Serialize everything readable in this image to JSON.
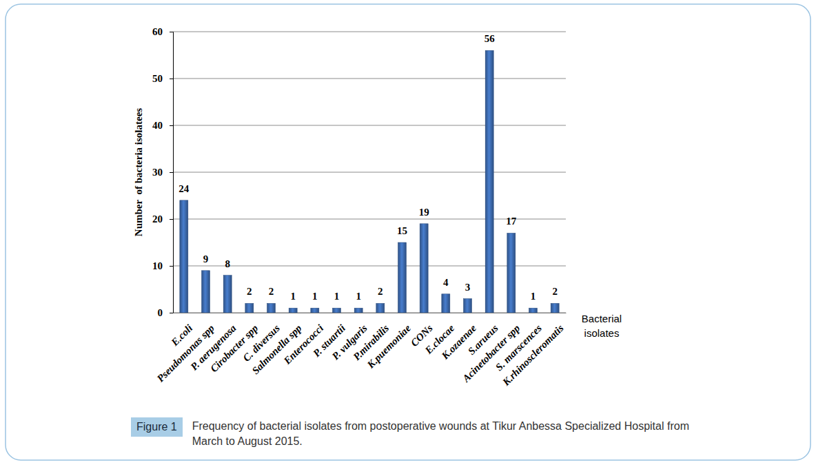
{
  "chart_data": {
    "type": "bar",
    "title": "Figure 1",
    "subtitle": "Frequency of bacterial isolates from postoperative wounds at Tikur Anbessa Specialized Hospital from March to August 2015.",
    "x_label": "Bacterial isolates",
    "y_label": "Number  of bacteria isolatees",
    "categories": [
      "E.coli",
      "Pseudomonas spp",
      "P. aerugenosa",
      "Cirobacter spp",
      "C. diversus",
      "Salmonella spp",
      "Enterococci",
      "P. stuartii",
      "P. vulgaris",
      "P.mirabilis",
      "K.puemoniae",
      "CONs",
      "E.clocae",
      "K.ozaenae",
      "S.arueus",
      "Acinetobacter spp",
      "S. marscences",
      "K.rhinoscleromatis"
    ],
    "values": [
      24,
      9,
      8,
      2,
      2,
      1,
      1,
      1,
      1,
      2,
      15,
      19,
      4,
      3,
      56,
      17,
      1,
      2
    ],
    "color": "#3e6db3",
    "ylim": [
      0,
      60
    ],
    "yticks": [
      0,
      10,
      20,
      30,
      40,
      50,
      60
    ],
    "grid": true,
    "data_labels": true
  }
}
